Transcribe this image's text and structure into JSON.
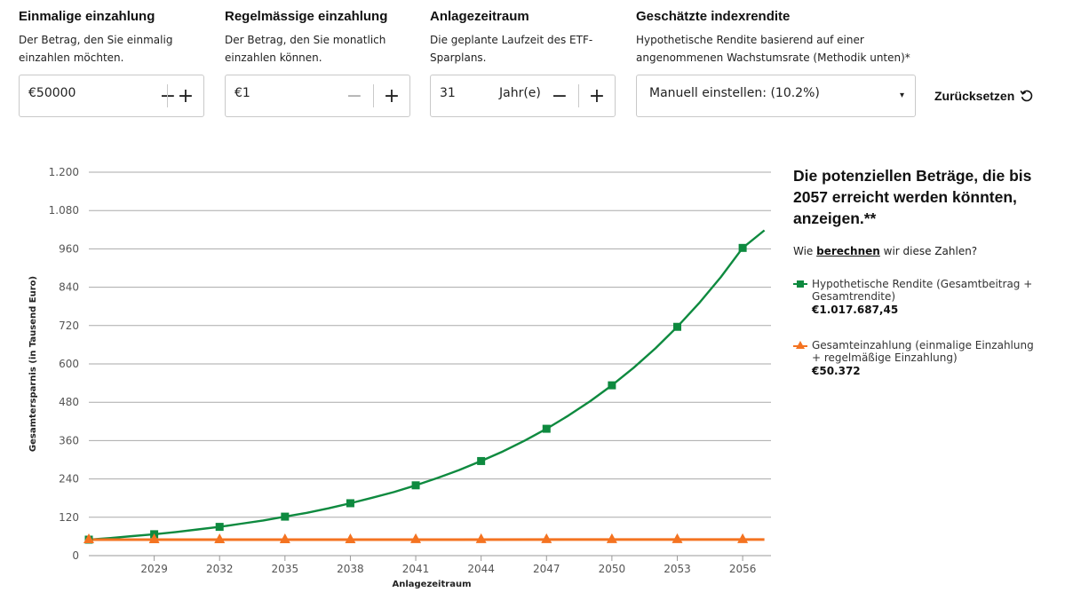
{
  "inputs": {
    "lump_sum": {
      "title": "Einmalige einzahlung",
      "desc1": "Der Betrag, den Sie einmalig",
      "desc2": "einzahlen möchten.",
      "value": "€50000",
      "minus": "−",
      "plus": "+"
    },
    "monthly": {
      "title": "Regelmässige einzahlung",
      "desc1": "Der Betrag, den Sie monatlich",
      "desc2": "einzahlen können.",
      "value": "€1",
      "minus": "−",
      "plus": "+"
    },
    "period": {
      "title": "Anlagezeitraum",
      "desc1": "Die geplante Laufzeit des ETF-",
      "desc2": "Sparplans.",
      "value": "31",
      "unit": "Jahr(e)",
      "minus": "−",
      "plus": "+"
    },
    "index_return": {
      "title": "Geschätzte indexrendite",
      "desc1": "Hypothetische Rendite basierend auf einer",
      "desc2": "angenommenen Wachstumsrate (Methodik unten)*",
      "selected": "Manuell einstellen: (10.2%)",
      "caret": "▾"
    }
  },
  "reset_label": "Zurücksetzen",
  "summary": {
    "title": "Die potenziellen Beträge, die bis 2057 erreicht werden könnten, anzeigen.**",
    "how_prefix": "Wie ",
    "how_link": "berechnen",
    "how_suffix": " wir diese Zahlen?"
  },
  "legend": [
    {
      "label": "Hypothetische Rendite (Gesamtbeitrag + Gesamtrendite)",
      "value": "€1.017.687,45",
      "color": "#0e8a3f",
      "marker": "square"
    },
    {
      "label": "Gesamteinzahlung (einmalige Einzahlung + regelmäßige Einzahlung)",
      "value": "€50.372",
      "color": "#f47321",
      "marker": "triangle"
    }
  ],
  "chart_data": {
    "type": "line",
    "xlabel": "Anlagezeitraum",
    "ylabel": "Gesamtersparnis (in Tausend Euro)",
    "ylim": [
      0,
      1200
    ],
    "yticks": [
      0,
      120,
      240,
      360,
      480,
      600,
      720,
      840,
      960,
      1080,
      1200
    ],
    "ytick_labels": [
      "0",
      "120",
      "240",
      "360",
      "480",
      "600",
      "720",
      "840",
      "960",
      "1.080",
      "1.200"
    ],
    "xlim": [
      2026,
      2057.3
    ],
    "xticks": [
      2029,
      2032,
      2035,
      2038,
      2041,
      2044,
      2047,
      2050,
      2053,
      2056
    ],
    "grid": "horizontal",
    "series": [
      {
        "name": "Hypothetische Rendite (Gesamtbeitrag + Gesamtrendite)",
        "color": "#0e8a3f",
        "marker": "square",
        "markers_x": [
          2026,
          2029,
          2032,
          2035,
          2038,
          2041,
          2044,
          2047,
          2050,
          2053,
          2056
        ],
        "x": [
          2026,
          2027,
          2028,
          2029,
          2030,
          2031,
          2032,
          2033,
          2034,
          2035,
          2036,
          2037,
          2038,
          2039,
          2040,
          2041,
          2042,
          2043,
          2044,
          2045,
          2046,
          2047,
          2048,
          2049,
          2050,
          2051,
          2052,
          2053,
          2054,
          2055,
          2056,
          2057
        ],
        "y": [
          50,
          55,
          61,
          67,
          74,
          82,
          90,
          100,
          110,
          122,
          134,
          148,
          164,
          181,
          199,
          220,
          243,
          268,
          296,
          326,
          360,
          397,
          438,
          483,
          533,
          588,
          649,
          716,
          790,
          872,
          963,
          1018
        ]
      },
      {
        "name": "Gesamteinzahlung (einmalige Einzahlung + regelmäßige Einzahlung)",
        "color": "#f47321",
        "marker": "triangle",
        "markers_x": [
          2026,
          2029,
          2032,
          2035,
          2038,
          2041,
          2044,
          2047,
          2050,
          2053,
          2056
        ],
        "x": [
          2026,
          2057
        ],
        "y": [
          50,
          50.4
        ]
      }
    ]
  }
}
